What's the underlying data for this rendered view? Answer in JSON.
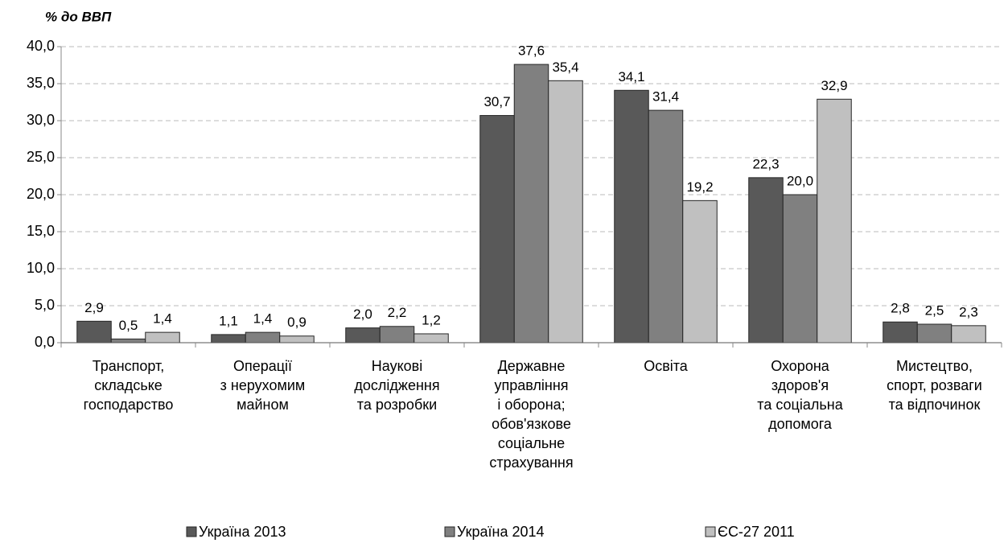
{
  "chart_data": {
    "type": "bar",
    "y_axis_label": "% до ВВП",
    "categories": [
      [
        "Транспорт,",
        "складське",
        "господарство"
      ],
      [
        "Операції",
        "з нерухомим",
        "майном"
      ],
      [
        "Наукові",
        "дослідження",
        "та розробки"
      ],
      [
        "Державне",
        "управління",
        "і оборона;",
        "обов'язкове",
        "соціальне",
        "страхування"
      ],
      [
        "Освіта"
      ],
      [
        "Охорона",
        "здоров'я",
        "та соціальна",
        "допомога"
      ],
      [
        "Мистецтво,",
        "спорт, розваги",
        "та відпочинок"
      ]
    ],
    "series": [
      {
        "name": "Україна 2013",
        "color": "#595959",
        "values": [
          2.9,
          1.1,
          2.0,
          30.7,
          34.1,
          22.3,
          2.8
        ],
        "value_labels": [
          "2,9",
          "1,1",
          "2,0",
          "30,7",
          "34,1",
          "22,3",
          "2,8"
        ]
      },
      {
        "name": "Україна 2014",
        "color": "#808080",
        "values": [
          0.5,
          1.4,
          2.2,
          37.6,
          31.4,
          20.0,
          2.5
        ],
        "value_labels": [
          "0,5",
          "1,4",
          "2,2",
          "37,6",
          "31,4",
          "20,0",
          "2,5"
        ]
      },
      {
        "name": "ЄС-27 2011",
        "color": "#c0c0c0",
        "values": [
          1.4,
          0.9,
          1.2,
          35.4,
          19.2,
          32.9,
          2.3
        ],
        "value_labels": [
          "1,4",
          "0,9",
          "1,2",
          "35,4",
          "19,2",
          "32,9",
          "2,3"
        ]
      }
    ],
    "ylim": [
      0,
      40
    ],
    "yticks": [
      {
        "value": 0,
        "label": "0,0"
      },
      {
        "value": 5,
        "label": "5,0"
      },
      {
        "value": 10,
        "label": "10,0"
      },
      {
        "value": 15,
        "label": "15,0"
      },
      {
        "value": 20,
        "label": "20,0"
      },
      {
        "value": 25,
        "label": "25,0"
      },
      {
        "value": 30,
        "label": "30,0"
      },
      {
        "value": 35,
        "label": "35,0"
      },
      {
        "value": 40,
        "label": "40,0"
      }
    ],
    "grid": true,
    "legend": "bottom"
  }
}
